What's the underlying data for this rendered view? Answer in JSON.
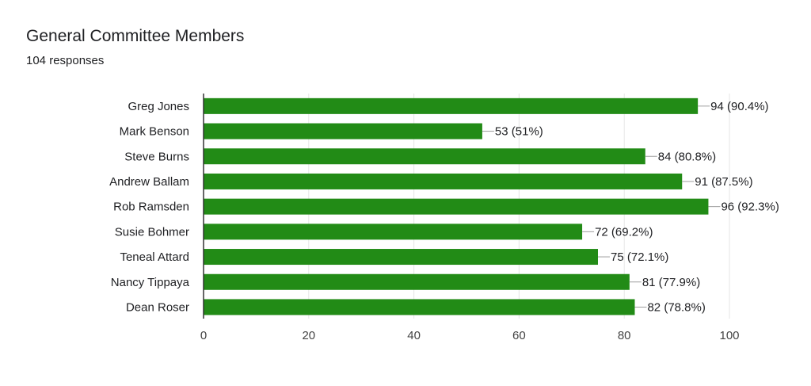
{
  "card": {
    "title": "General Committee Members",
    "subtitle": "104 responses"
  },
  "colors": {
    "bar": "#228b16",
    "grid": "#e6e6e6",
    "axis": "#333333",
    "leader": "#9e9e9e",
    "text": "#202124"
  },
  "chart_data": {
    "type": "bar",
    "orientation": "horizontal",
    "title": "",
    "xlabel": "",
    "ylabel": "",
    "categories": [
      "Greg Jones",
      "Mark Benson",
      "Steve Burns",
      "Andrew Ballam",
      "Rob Ramsden",
      "Susie Bohmer",
      "Teneal Attard",
      "Nancy Tippaya",
      "Dean Roser"
    ],
    "values": [
      94,
      53,
      84,
      91,
      96,
      72,
      75,
      81,
      82
    ],
    "data_labels": [
      "94 (90.4%)",
      "53 (51%)",
      "84 (80.8%)",
      "91 (87.5%)",
      "96 (92.3%)",
      "72 (69.2%)",
      "75 (72.1%)",
      "81 (77.9%)",
      "82 (78.8%)"
    ],
    "xlim": [
      0,
      100
    ],
    "x_ticks": [
      0,
      20,
      40,
      60,
      80,
      100
    ],
    "grid": true,
    "legend": "none"
  }
}
